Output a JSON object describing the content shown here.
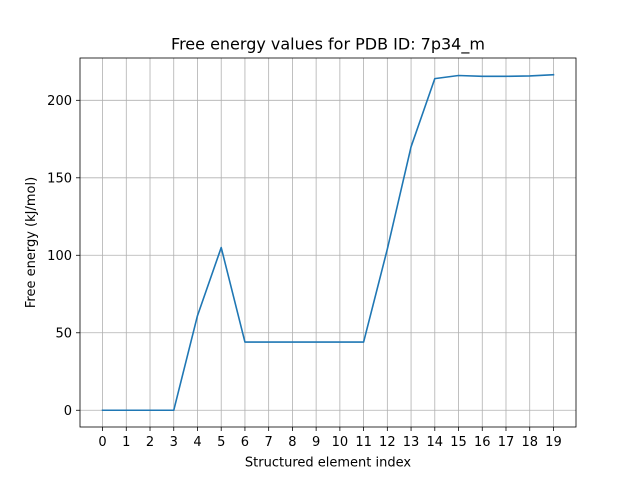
{
  "chart_data": {
    "type": "line",
    "title": "Free energy values for PDB ID: 7p34_m",
    "xlabel": "Structured element index",
    "ylabel": "Free energy (kJ/mol)",
    "x": [
      0,
      1,
      2,
      3,
      4,
      5,
      6,
      7,
      8,
      9,
      10,
      11,
      12,
      13,
      14,
      15,
      16,
      17,
      18,
      19
    ],
    "y": [
      0,
      0,
      0,
      0,
      61,
      105,
      44,
      44,
      44,
      44,
      44,
      44,
      104,
      170,
      214,
      216,
      215.5,
      215.5,
      215.7,
      216.5
    ],
    "xlim": [
      -0.95,
      19.95
    ],
    "ylim": [
      -10.8,
      227.3
    ],
    "xticks": [
      0,
      1,
      2,
      3,
      4,
      5,
      6,
      7,
      8,
      9,
      10,
      11,
      12,
      13,
      14,
      15,
      16,
      17,
      18,
      19
    ],
    "yticks": [
      0,
      50,
      100,
      150,
      200
    ],
    "grid": true,
    "line_color": "#1f77b4"
  }
}
